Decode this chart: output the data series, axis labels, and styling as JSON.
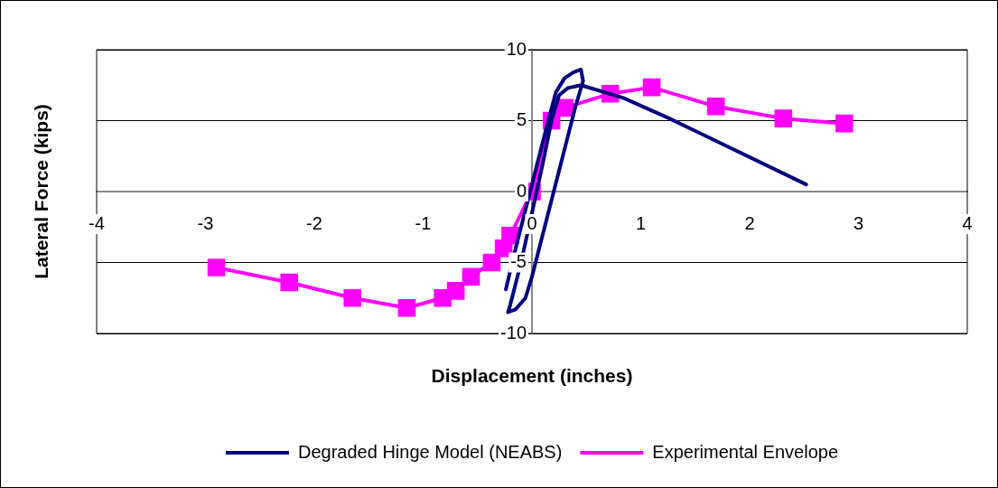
{
  "chart_data": {
    "type": "line",
    "xlabel": "Displacement (inches)",
    "ylabel": "Lateral Force (kips)",
    "xlim": [
      -4,
      4
    ],
    "xticks": [
      -4,
      -3,
      -2,
      -1,
      0,
      1,
      2,
      3,
      4
    ],
    "ylim": [
      -10,
      10
    ],
    "yticks": [
      -10,
      -5,
      0,
      5,
      10
    ],
    "grid": "y",
    "legend": "bottom",
    "line_style": "solid",
    "series": [
      {
        "name": "Degraded Hinge Model (NEABS)",
        "color": "#000080",
        "marker": "none",
        "x": [
          -0.24,
          -0.15,
          -0.05,
          0.05,
          0.15,
          0.22,
          0.3,
          0.38,
          0.45,
          0.47,
          0.4,
          0.3,
          0.2,
          0.1,
          0.0,
          -0.06,
          -0.15,
          -0.22,
          -0.2,
          -0.1,
          0.0,
          0.1,
          0.18,
          0.25,
          0.33,
          0.45,
          0.84,
          1.25,
          2.52
        ],
        "values": [
          -6.9,
          -4,
          -1,
          2,
          5,
          7,
          8,
          8.4,
          8.6,
          7.8,
          6,
          3,
          0,
          -3,
          -6,
          -7.5,
          -8.3,
          -8.5,
          -8,
          -5,
          -1.5,
          2,
          5,
          6.8,
          7.3,
          7.5,
          6.6,
          5.2,
          0.5
        ]
      },
      {
        "name": "Experimental Envelope",
        "color": "#ff00ff",
        "marker": "square",
        "x": [
          -2.9,
          -2.23,
          -1.65,
          -1.15,
          -0.82,
          -0.7,
          -0.56,
          -0.37,
          -0.26,
          -0.2,
          0,
          0.18,
          0.3,
          0.72,
          1.1,
          1.69,
          2.31,
          2.87
        ],
        "values": [
          -5.35,
          -6.4,
          -7.5,
          -8.2,
          -7.5,
          -7,
          -6,
          -5,
          -4,
          -3.1,
          0,
          5,
          5.9,
          6.9,
          7.35,
          6,
          5.15,
          4.8
        ]
      }
    ]
  }
}
